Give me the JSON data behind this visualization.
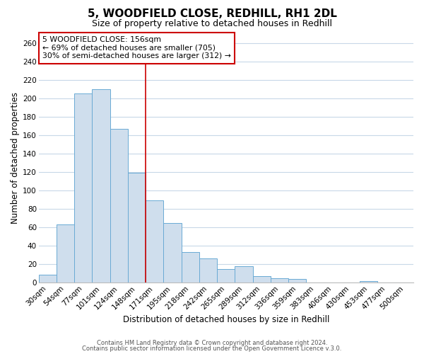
{
  "title": "5, WOODFIELD CLOSE, REDHILL, RH1 2DL",
  "subtitle": "Size of property relative to detached houses in Redhill",
  "xlabel": "Distribution of detached houses by size in Redhill",
  "ylabel": "Number of detached properties",
  "bar_color": "#cfdeed",
  "bar_edge_color": "#6aaad4",
  "categories": [
    "30sqm",
    "54sqm",
    "77sqm",
    "101sqm",
    "124sqm",
    "148sqm",
    "171sqm",
    "195sqm",
    "218sqm",
    "242sqm",
    "265sqm",
    "289sqm",
    "312sqm",
    "336sqm",
    "359sqm",
    "383sqm",
    "406sqm",
    "430sqm",
    "453sqm",
    "477sqm",
    "500sqm"
  ],
  "values": [
    9,
    63,
    205,
    210,
    167,
    119,
    89,
    65,
    33,
    26,
    15,
    18,
    7,
    5,
    4,
    0,
    0,
    0,
    2,
    0,
    0
  ],
  "ylim": [
    0,
    270
  ],
  "yticks": [
    0,
    20,
    40,
    60,
    80,
    100,
    120,
    140,
    160,
    180,
    200,
    220,
    240,
    260
  ],
  "vline_x_index": 5,
  "vline_color": "#cc0000",
  "annotation_title": "5 WOODFIELD CLOSE: 156sqm",
  "annotation_line1": "← 69% of detached houses are smaller (705)",
  "annotation_line2": "30% of semi-detached houses are larger (312) →",
  "annotation_box_color": "#cc0000",
  "footnote1": "Contains HM Land Registry data © Crown copyright and database right 2024.",
  "footnote2": "Contains public sector information licensed under the Open Government Licence v.3.0.",
  "background_color": "#ffffff",
  "grid_color": "#c8d8e8",
  "title_fontsize": 11,
  "subtitle_fontsize": 9,
  "axis_label_fontsize": 8.5,
  "tick_fontsize": 7.5,
  "annotation_fontsize": 7.8
}
